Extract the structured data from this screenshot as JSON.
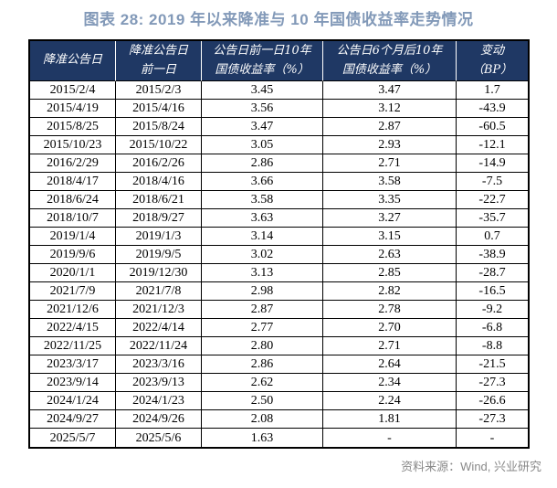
{
  "title": "图表 28: 2019 年以来降准与 10 年国债收益率走势情况",
  "colors": {
    "title_text": "#8299b8",
    "header_background": "#1f3864",
    "header_text": "#ffffff",
    "highlight_red": "#ff0000",
    "source_text": "#898989",
    "border": "#000000"
  },
  "table": {
    "headers": [
      {
        "lines": [
          "降准公告日"
        ]
      },
      {
        "lines": [
          "降准公告日",
          "前一日"
        ]
      },
      {
        "lines": [
          "公告日前一日10年",
          "国债收益率（%）"
        ]
      },
      {
        "lines": [
          "公告日6个月后10年",
          "国债收益率（%）"
        ]
      },
      {
        "lines": [
          "变动",
          "（BP）"
        ]
      }
    ],
    "rows": [
      {
        "cells": [
          "2015/2/4",
          "2015/2/3",
          "3.45",
          "3.47",
          "1.7"
        ],
        "highlight": true
      },
      {
        "cells": [
          "2015/4/19",
          "2015/4/16",
          "3.56",
          "3.12",
          "-43.9"
        ],
        "highlight": false
      },
      {
        "cells": [
          "2015/8/25",
          "2015/8/24",
          "3.47",
          "2.87",
          "-60.5"
        ],
        "highlight": false
      },
      {
        "cells": [
          "2015/10/23",
          "2015/10/22",
          "3.05",
          "2.93",
          "-12.1"
        ],
        "highlight": false
      },
      {
        "cells": [
          "2016/2/29",
          "2016/2/26",
          "2.86",
          "2.71",
          "-14.9"
        ],
        "highlight": false
      },
      {
        "cells": [
          "2018/4/17",
          "2018/4/16",
          "3.66",
          "3.58",
          "-7.5"
        ],
        "highlight": false
      },
      {
        "cells": [
          "2018/6/24",
          "2018/6/21",
          "3.58",
          "3.35",
          "-22.7"
        ],
        "highlight": false
      },
      {
        "cells": [
          "2018/10/7",
          "2018/9/27",
          "3.63",
          "3.27",
          "-35.7"
        ],
        "highlight": false
      },
      {
        "cells": [
          "2019/1/4",
          "2019/1/3",
          "3.14",
          "3.15",
          "0.7"
        ],
        "highlight": true
      },
      {
        "cells": [
          "2019/9/6",
          "2019/9/5",
          "3.02",
          "2.63",
          "-38.9"
        ],
        "highlight": false
      },
      {
        "cells": [
          "2020/1/1",
          "2019/12/30",
          "3.13",
          "2.85",
          "-28.7"
        ],
        "highlight": false
      },
      {
        "cells": [
          "2021/7/9",
          "2021/7/8",
          "2.98",
          "2.82",
          "-16.5"
        ],
        "highlight": false
      },
      {
        "cells": [
          "2021/12/6",
          "2021/12/3",
          "2.87",
          "2.78",
          "-9.2"
        ],
        "highlight": false
      },
      {
        "cells": [
          "2022/4/15",
          "2022/4/14",
          "2.77",
          "2.70",
          "-6.8"
        ],
        "highlight": false
      },
      {
        "cells": [
          "2022/11/25",
          "2022/11/24",
          "2.80",
          "2.71",
          "-8.8"
        ],
        "highlight": false
      },
      {
        "cells": [
          "2023/3/17",
          "2023/3/16",
          "2.86",
          "2.64",
          "-21.5"
        ],
        "highlight": false
      },
      {
        "cells": [
          "2023/9/14",
          "2023/9/13",
          "2.62",
          "2.34",
          "-27.3"
        ],
        "highlight": false
      },
      {
        "cells": [
          "2024/1/24",
          "2024/1/23",
          "2.50",
          "2.24",
          "-26.6"
        ],
        "highlight": false
      },
      {
        "cells": [
          "2024/9/27",
          "2024/9/26",
          "2.08",
          "1.81",
          "-27.3"
        ],
        "highlight": false
      },
      {
        "cells": [
          "2025/5/7",
          "2025/5/6",
          "1.63",
          "-",
          "-"
        ],
        "highlight": false
      }
    ]
  },
  "footer": {
    "text": "资料来源：Wind, 兴业研究"
  }
}
